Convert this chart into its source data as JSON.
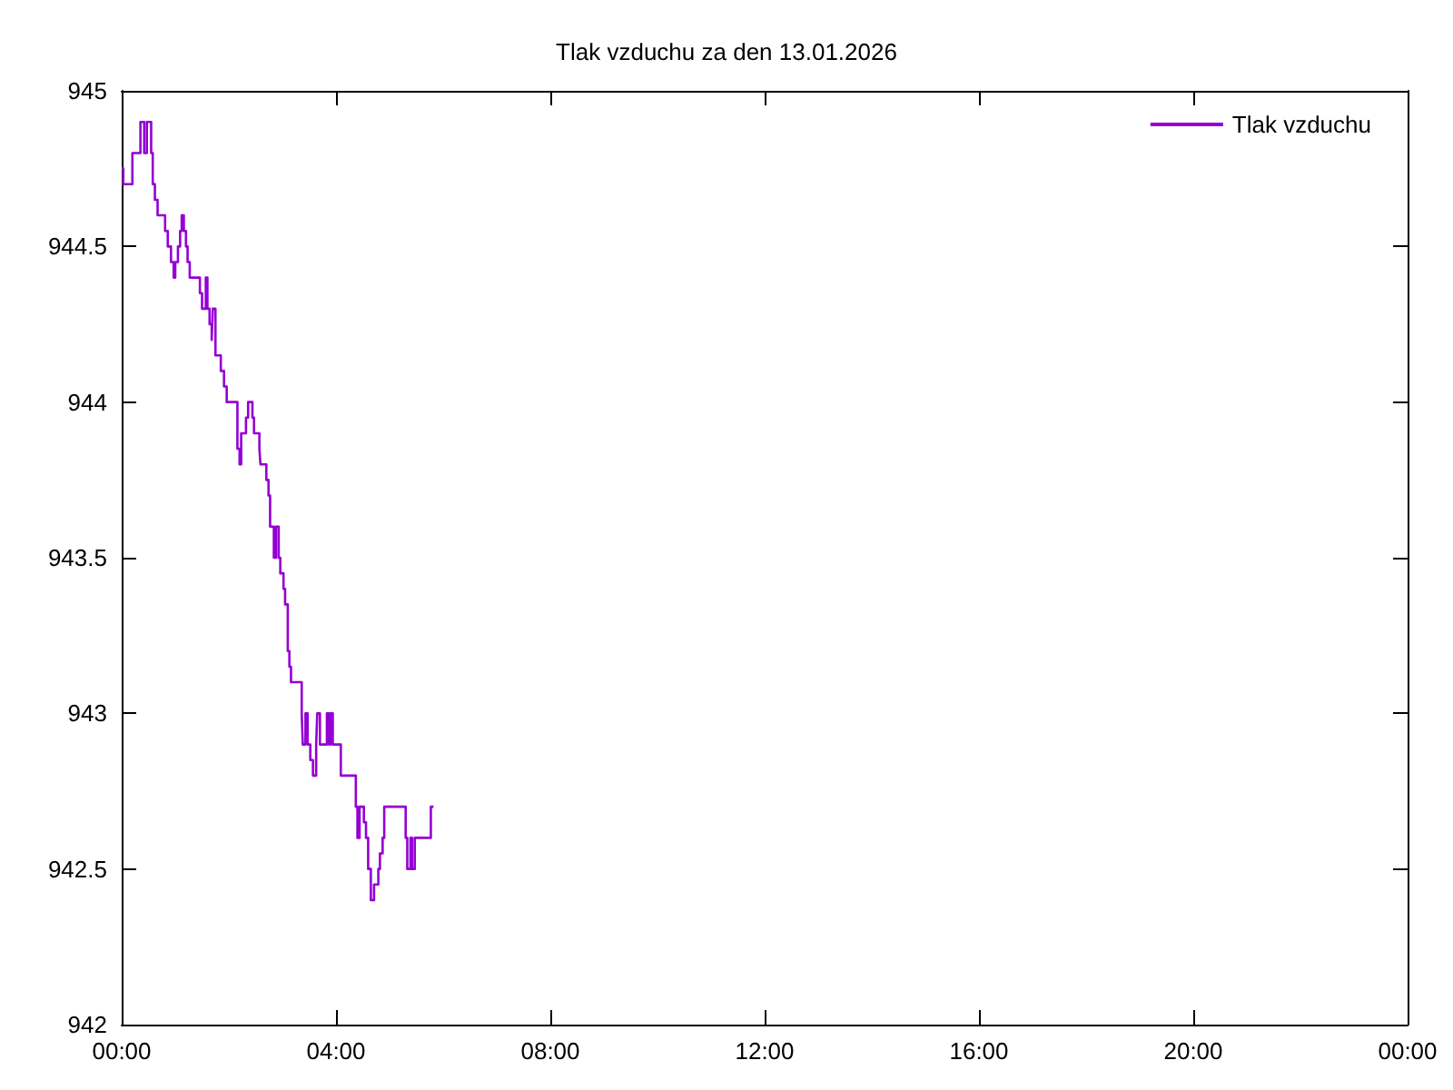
{
  "chart_data": {
    "type": "step",
    "title": "Tlak vzduchu za den 13.01.2026",
    "x": [
      0,
      0.03,
      0.2,
      0.35,
      0.42,
      0.47,
      0.55,
      0.58,
      0.62,
      0.67,
      0.81,
      0.86,
      0.92,
      0.97,
      1.0,
      1.05,
      1.09,
      1.12,
      1.16,
      1.2,
      1.23,
      1.27,
      1.46,
      1.5,
      1.57,
      1.6,
      1.64,
      1.68,
      1.7,
      1.75,
      1.85,
      1.91,
      1.96,
      2.16,
      2.2,
      2.23,
      2.32,
      2.36,
      2.44,
      2.47,
      2.57,
      2.59,
      2.7,
      2.74,
      2.77,
      2.84,
      2.88,
      2.93,
      2.96,
      3.02,
      3.05,
      3.1,
      3.13,
      3.16,
      3.36,
      3.38,
      3.43,
      3.47,
      3.52,
      3.57,
      3.63,
      3.65,
      3.7,
      3.83,
      3.87,
      3.9,
      3.94,
      4.09,
      4.37,
      4.4,
      4.44,
      4.52,
      4.56,
      4.6,
      4.65,
      4.71,
      4.79,
      4.82,
      4.87,
      4.9,
      5.3,
      5.33,
      5.39,
      5.42,
      5.47,
      5.77,
      5.82
    ],
    "series": [
      {
        "name": "Tlak vzduchu",
        "color": "#9400d3",
        "values": [
          944.75,
          944.7,
          944.8,
          944.9,
          944.8,
          944.9,
          944.8,
          944.7,
          944.65,
          944.6,
          944.55,
          944.5,
          944.45,
          944.4,
          944.45,
          944.5,
          944.55,
          944.6,
          944.55,
          944.5,
          944.45,
          944.4,
          944.35,
          944.3,
          944.4,
          944.3,
          944.25,
          944.2,
          944.3,
          944.15,
          944.1,
          944.05,
          944.0,
          943.85,
          943.8,
          943.9,
          943.95,
          944.0,
          943.95,
          943.9,
          943.85,
          943.8,
          943.75,
          943.7,
          943.6,
          943.5,
          943.6,
          943.5,
          943.45,
          943.4,
          943.35,
          943.2,
          943.15,
          943.1,
          943.0,
          942.9,
          943.0,
          942.9,
          942.85,
          942.8,
          942.9,
          943.0,
          942.9,
          943.0,
          942.9,
          943.0,
          942.9,
          942.8,
          942.7,
          942.6,
          942.7,
          942.65,
          942.6,
          942.5,
          942.4,
          942.45,
          942.5,
          942.55,
          942.6,
          942.7,
          942.6,
          942.5,
          942.6,
          942.5,
          942.6,
          942.7,
          942.7
        ]
      }
    ],
    "xlim": [
      0,
      24
    ],
    "xticks": [
      {
        "value": 0,
        "label": "00:00"
      },
      {
        "value": 4,
        "label": "04:00"
      },
      {
        "value": 8,
        "label": "08:00"
      },
      {
        "value": 12,
        "label": "12:00"
      },
      {
        "value": 16,
        "label": "16:00"
      },
      {
        "value": 20,
        "label": "20:00"
      },
      {
        "value": 24,
        "label": "00:00"
      }
    ],
    "ylim": [
      942,
      945
    ],
    "yticks": [
      942,
      942.5,
      943,
      943.5,
      944,
      944.5,
      945
    ],
    "grid": false,
    "legend": "top right",
    "marker": "none",
    "line_style": "solid"
  }
}
